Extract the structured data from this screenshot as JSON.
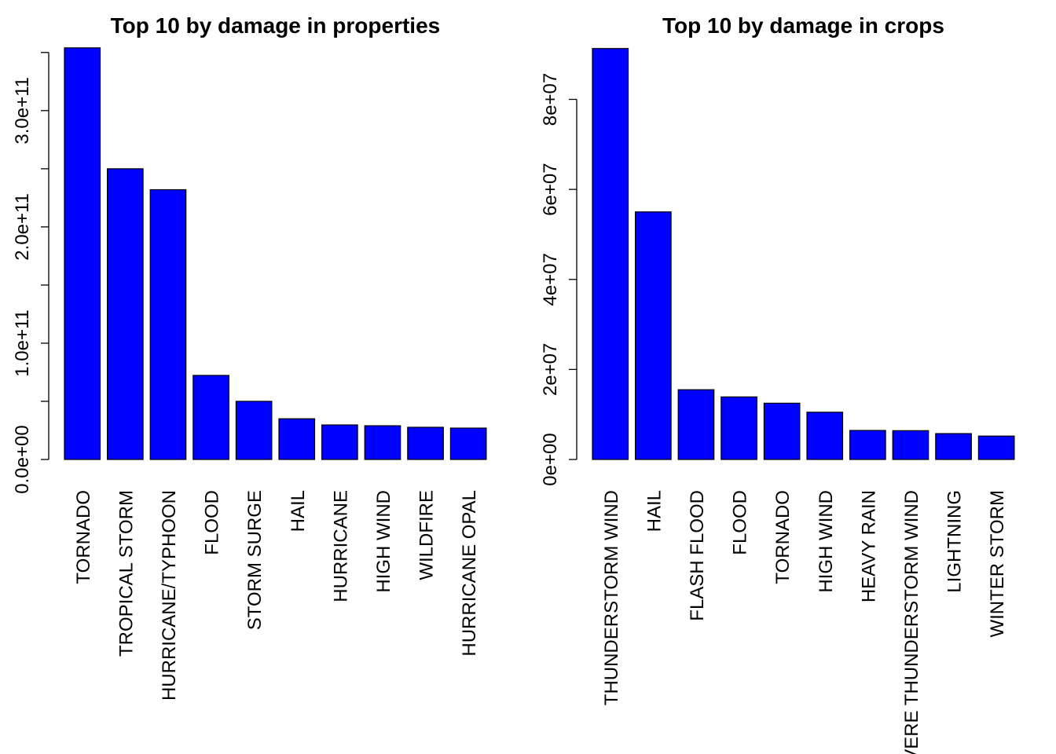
{
  "chart_data": [
    {
      "type": "bar",
      "title": "Top 10 by damage in properties",
      "categories": [
        "TORNADO",
        "TROPICAL STORM",
        "HURRICANE/TYPHOON",
        "FLOOD",
        "STORM SURGE",
        "HAIL",
        "HURRICANE",
        "HIGH WIND",
        "WILDFIRE",
        "HURRICANE OPAL"
      ],
      "values": [
        354000000000,
        250000000000,
        232000000000,
        72300000000,
        50000000000,
        35000000000,
        29700000000,
        29000000000,
        27700000000,
        27000000000
      ],
      "color": "#0000ff",
      "ylim": [
        0,
        360000000000
      ],
      "yticks": [
        {
          "value": 0,
          "label": "0.0e+00"
        },
        {
          "value": 50000000000,
          "label": null
        },
        {
          "value": 100000000000,
          "label": "1.0e+11"
        },
        {
          "value": 150000000000,
          "label": null
        },
        {
          "value": 200000000000,
          "label": "2.0e+11"
        },
        {
          "value": 250000000000,
          "label": null
        },
        {
          "value": 300000000000,
          "label": "3.0e+11"
        },
        {
          "value": 350000000000,
          "label": null
        }
      ]
    },
    {
      "type": "bar",
      "title": "Top 10 by damage in crops",
      "categories": [
        "THUNDERSTORM WIND",
        "HAIL",
        "FLASH FLOOD",
        "FLOOD",
        "TORNADO",
        "HIGH WIND",
        "HEAVY RAIN",
        "SEVERE THUNDERSTORM WIND",
        "LIGHTNING",
        "WINTER STORM"
      ],
      "values": [
        91300000,
        55000000,
        15500000,
        13900000,
        12500000,
        10500000,
        6450000,
        6400000,
        5750000,
        5200000
      ],
      "color": "#0000ff",
      "ylim": [
        0,
        93000000
      ],
      "yticks": [
        {
          "value": 0,
          "label": "0e+00"
        },
        {
          "value": 20000000,
          "label": "2e+07"
        },
        {
          "value": 40000000,
          "label": "4e+07"
        },
        {
          "value": 60000000,
          "label": "6e+07"
        },
        {
          "value": 80000000,
          "label": "8e+07"
        }
      ]
    }
  ]
}
